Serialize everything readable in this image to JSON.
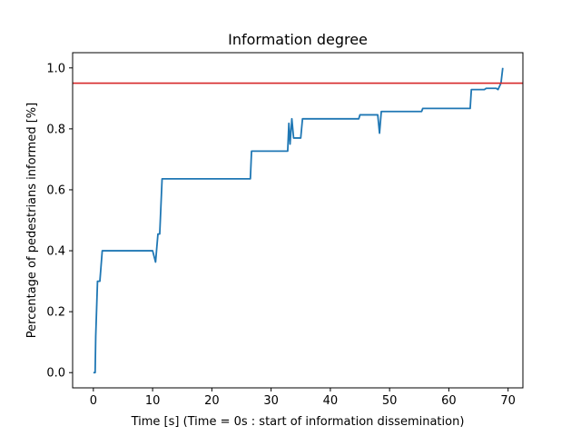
{
  "chart_data": {
    "type": "line",
    "title": "Information degree",
    "xlabel": "Time [s] (Time = 0s : start of information dissemination)",
    "ylabel": "Percentage of pedestrians informed [%]",
    "xlim": [
      -3.5,
      72.5
    ],
    "ylim": [
      -0.05,
      1.05
    ],
    "xticks": [
      0,
      10,
      20,
      30,
      40,
      50,
      60,
      70
    ],
    "yticks": [
      0.0,
      0.2,
      0.4,
      0.6,
      0.8,
      1.0
    ],
    "xtick_labels": [
      "0",
      "10",
      "20",
      "30",
      "40",
      "50",
      "60",
      "70"
    ],
    "ytick_labels": [
      "0.0",
      "0.2",
      "0.4",
      "0.6",
      "0.8",
      "1.0"
    ],
    "grid": false,
    "colors": {
      "series": "#1f77b4",
      "threshold": "#d62728"
    },
    "threshold": {
      "y": 0.95
    },
    "series": [
      {
        "x": [
          0.0,
          0.3,
          0.4,
          0.7,
          1.0,
          1.1,
          1.5,
          10.0,
          10.5,
          10.9,
          11.2,
          11.3,
          11.6,
          26.5,
          26.7,
          32.8,
          33.0,
          33.2,
          33.5,
          33.8,
          34.5,
          35.0,
          35.3,
          44.8,
          45.0,
          48.0,
          48.3,
          48.6,
          49.0,
          55.4,
          55.6,
          63.6,
          63.8,
          66.0,
          66.3,
          68.0,
          68.3,
          68.8,
          69.1
        ],
        "y": [
          0.0,
          0.0,
          0.12,
          0.3,
          0.3,
          0.3,
          0.4,
          0.4,
          0.363,
          0.455,
          0.455,
          0.5,
          0.636,
          0.636,
          0.727,
          0.727,
          0.818,
          0.75,
          0.833,
          0.77,
          0.77,
          0.77,
          0.833,
          0.833,
          0.846,
          0.846,
          0.786,
          0.857,
          0.857,
          0.857,
          0.867,
          0.867,
          0.929,
          0.929,
          0.933,
          0.933,
          0.929,
          0.95,
          1.0
        ]
      }
    ]
  }
}
